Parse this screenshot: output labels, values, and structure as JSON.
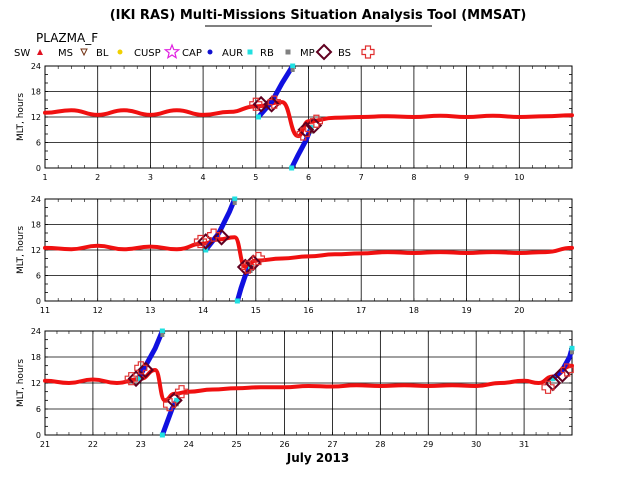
{
  "title": "(IKI RAS) Multi-Missions Situation Analysis Tool (MMSAT)",
  "satellite": "PLAZMA_F",
  "x_month_label": "July 2013",
  "legend": [
    {
      "label": "SW",
      "icon": "triangle-icon",
      "color": "#e01020"
    },
    {
      "label": "MS",
      "icon": "triangle-down-icon",
      "color": "#703010"
    },
    {
      "label": "BL",
      "icon": "dot-icon",
      "color": "#f0d000"
    },
    {
      "label": "CUSP",
      "icon": "star-icon",
      "color": "#e020e0"
    },
    {
      "label": "CAP",
      "icon": "dot-icon",
      "color": "#1010d0"
    },
    {
      "label": "AUR",
      "icon": "square-icon",
      "color": "#20e0e0"
    },
    {
      "label": "RB",
      "icon": "square-icon",
      "color": "#808080"
    },
    {
      "label": "MP",
      "icon": "diamond-icon",
      "color": "#600020"
    },
    {
      "label": "BS",
      "icon": "cross-icon",
      "color": "#e03030"
    }
  ],
  "colors": {
    "sw_curve": "#f01010",
    "cap": "#1010e0",
    "aur": "#20e0e0",
    "rb": "#808080",
    "mp": "#600020",
    "bs": "#e03030",
    "grid": "#000000"
  },
  "chart_data": [
    {
      "type": "line",
      "ylabel": "MLT, hours",
      "xlim": [
        1,
        11
      ],
      "ylim": [
        0,
        24
      ],
      "x_ticks": [
        "1",
        "2",
        "3",
        "4",
        "5",
        "6",
        "7",
        "8",
        "9",
        "10"
      ],
      "y_ticks": [
        "0",
        "6",
        "12",
        "18",
        "24"
      ],
      "grid": true,
      "sw_curve": {
        "x": [
          1,
          1.5,
          2,
          2.5,
          3,
          3.5,
          4,
          4.5,
          5,
          5.5,
          5.8,
          6,
          6.5,
          7,
          7.5,
          8,
          8.5,
          9,
          9.5,
          10,
          10.5,
          11
        ],
        "y": [
          13,
          13.6,
          12.5,
          13.6,
          12.5,
          13.6,
          12.5,
          13.2,
          14.5,
          15.5,
          7.5,
          11,
          11.8,
          12,
          12.2,
          12,
          12.3,
          12,
          12.3,
          12,
          12.2,
          12.4
        ]
      },
      "orbit_segments": [
        {
          "x": [
            5.05,
            5.3,
            5.5,
            5.7
          ],
          "y": [
            12,
            15.5,
            20,
            24
          ]
        },
        {
          "x": [
            5.68,
            5.8,
            5.95,
            6.05
          ],
          "y": [
            0,
            3,
            6.5,
            9.5
          ]
        }
      ],
      "magnetopause": {
        "x": [
          5.1,
          5.3,
          5.95,
          6.1
        ],
        "y": [
          15,
          15,
          9,
          10
        ]
      },
      "bow_shock": {
        "x": [
          5.0,
          5.35,
          5.9,
          6.15
        ],
        "y": [
          15,
          15.5,
          8,
          11
        ]
      }
    },
    {
      "type": "line",
      "ylabel": "MLT, hours",
      "xlim": [
        11,
        21
      ],
      "ylim": [
        0,
        24
      ],
      "x_ticks": [
        "11",
        "12",
        "13",
        "14",
        "15",
        "16",
        "17",
        "18",
        "19",
        "20"
      ],
      "y_ticks": [
        "0",
        "6",
        "12",
        "18",
        "24"
      ],
      "grid": true,
      "sw_curve": {
        "x": [
          11,
          11.5,
          12,
          12.5,
          13,
          13.5,
          14,
          14.3,
          14.6,
          14.8,
          15,
          15.5,
          16,
          16.5,
          17,
          17.5,
          18,
          18.5,
          19,
          19.5,
          20,
          20.5,
          21
        ],
        "y": [
          12.5,
          12.2,
          13,
          12.2,
          12.8,
          12.2,
          13.5,
          14.5,
          15,
          8,
          9.5,
          10,
          10.5,
          11,
          11.2,
          11.5,
          11.3,
          11.5,
          11.3,
          11.5,
          11.3,
          11.5,
          12.5
        ]
      },
      "orbit_segments": [
        {
          "x": [
            14.05,
            14.3,
            14.5,
            14.6
          ],
          "y": [
            12,
            16,
            21,
            24
          ]
        },
        {
          "x": [
            14.65,
            14.72,
            14.8,
            14.9
          ],
          "y": [
            0,
            3,
            6,
            8
          ]
        }
      ],
      "magnetopause": {
        "x": [
          14.05,
          14.35,
          14.8,
          14.95
        ],
        "y": [
          14,
          15,
          8,
          9
        ]
      },
      "bow_shock": {
        "x": [
          13.95,
          14.2,
          14.85,
          15.05
        ],
        "y": [
          14,
          15.5,
          8,
          10
        ]
      }
    },
    {
      "type": "line",
      "ylabel": "MLT, hours",
      "xlim": [
        21,
        32
      ],
      "ylim": [
        0,
        24
      ],
      "x_ticks": [
        "21",
        "22",
        "23",
        "24",
        "25",
        "26",
        "27",
        "28",
        "29",
        "30",
        "31"
      ],
      "y_ticks": [
        "0",
        "6",
        "12",
        "18",
        "24"
      ],
      "grid": true,
      "sw_curve": {
        "x": [
          21,
          21.5,
          22,
          22.5,
          23,
          23.3,
          23.5,
          23.7,
          24,
          24.5,
          25,
          25.5,
          26,
          26.5,
          27,
          27.5,
          28,
          28.5,
          29,
          29.5,
          30,
          30.5,
          31,
          31.3,
          31.6,
          32
        ],
        "y": [
          12.5,
          12,
          12.8,
          12,
          13,
          15,
          8,
          9.5,
          10,
          10.5,
          10.8,
          11,
          11,
          11.3,
          11.2,
          11.5,
          11.3,
          11.5,
          11.3,
          11.5,
          11.3,
          12,
          12.5,
          12,
          13.5,
          16
        ]
      },
      "orbit_segments": [
        {
          "x": [
            22.95,
            23.1,
            23.3,
            23.45
          ],
          "y": [
            13,
            16,
            20,
            24
          ]
        },
        {
          "x": [
            23.45,
            23.55,
            23.65,
            23.75
          ],
          "y": [
            0,
            3,
            6,
            8
          ]
        },
        {
          "x": [
            31.6,
            31.8,
            31.95,
            32.0
          ],
          "y": [
            13,
            15,
            18,
            20
          ]
        }
      ],
      "magnetopause": {
        "x": [
          22.9,
          23.1,
          23.7,
          31.6,
          31.8
        ],
        "y": [
          13,
          15,
          8,
          12,
          14
        ]
      },
      "bow_shock": {
        "x": [
          22.8,
          23.0,
          23.6,
          23.85,
          31.5,
          31.9
        ],
        "y": [
          13,
          15.5,
          7,
          10,
          11,
          15
        ]
      }
    }
  ]
}
